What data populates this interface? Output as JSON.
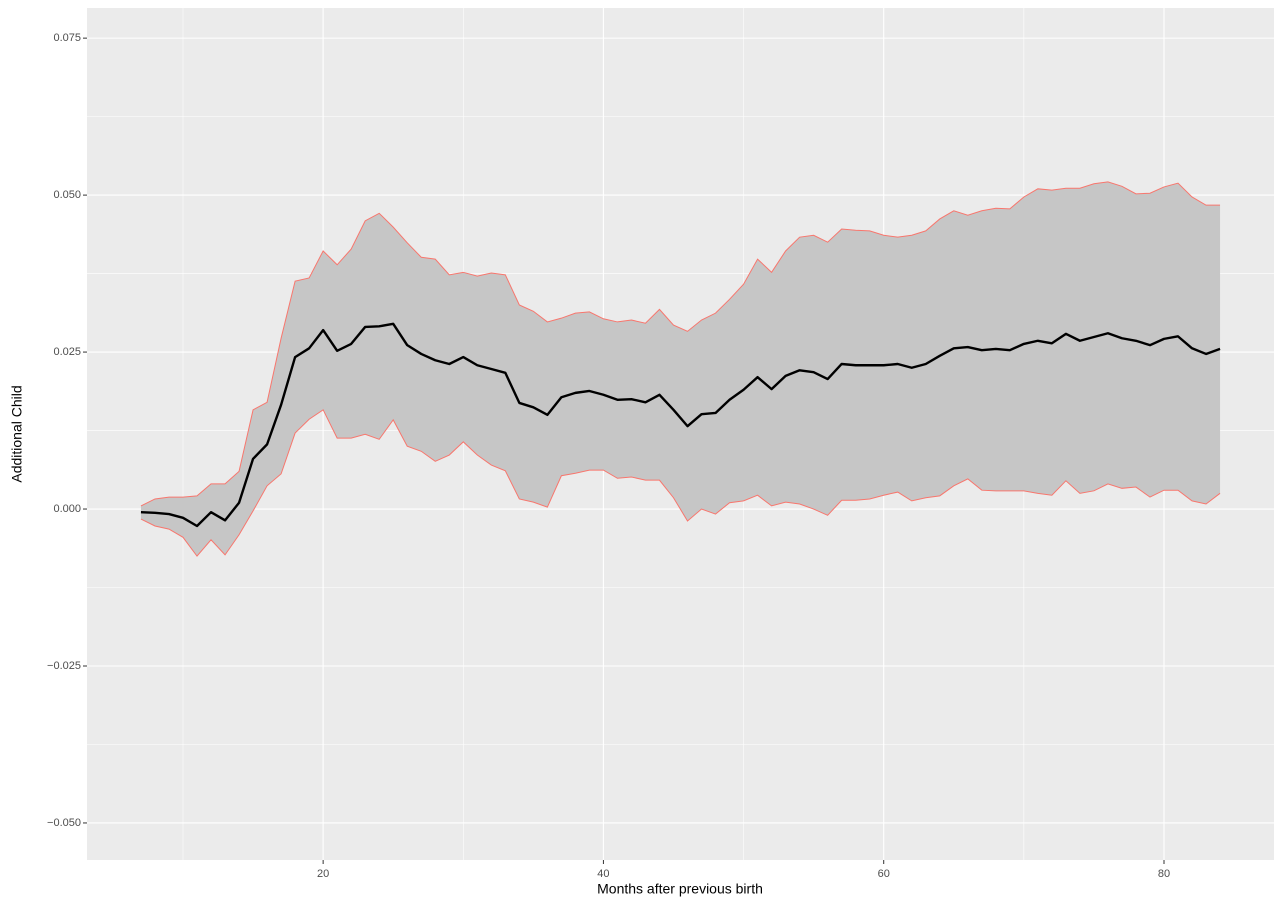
{
  "chart_data": {
    "type": "line",
    "x_label": "Months after previous birth",
    "y_label": "Additional Child",
    "x": [
      7,
      8,
      9,
      10,
      11,
      12,
      13,
      14,
      15,
      16,
      17,
      18,
      19,
      20,
      21,
      22,
      23,
      24,
      25,
      26,
      27,
      28,
      29,
      30,
      31,
      32,
      33,
      34,
      35,
      36,
      37,
      38,
      39,
      40,
      41,
      42,
      43,
      44,
      45,
      46,
      47,
      48,
      49,
      50,
      51,
      52,
      53,
      54,
      55,
      56,
      57,
      58,
      59,
      60,
      61,
      62,
      63,
      64,
      65,
      66,
      67,
      68,
      69,
      70,
      71,
      72,
      73,
      74,
      75,
      76,
      77,
      78,
      79,
      80,
      81,
      82,
      83,
      84
    ],
    "line": {
      "color": "#000000",
      "values": [
        -0.0005,
        -0.0006,
        -0.0008,
        -0.0014,
        -0.0027,
        -0.0005,
        -0.0018,
        0.001,
        0.008,
        0.0103,
        0.0166,
        0.0242,
        0.0256,
        0.0285,
        0.0252,
        0.0263,
        0.029,
        0.0291,
        0.0295,
        0.0261,
        0.0247,
        0.0237,
        0.0231,
        0.0242,
        0.0229,
        0.0223,
        0.0217,
        0.0169,
        0.0162,
        0.015,
        0.0178,
        0.0185,
        0.0188,
        0.0182,
        0.0174,
        0.0175,
        0.017,
        0.0182,
        0.0158,
        0.0132,
        0.0151,
        0.0153,
        0.0174,
        0.019,
        0.021,
        0.0191,
        0.0212,
        0.0221,
        0.0218,
        0.0207,
        0.0231,
        0.0229,
        0.0229,
        0.0229,
        0.0231,
        0.0225,
        0.0231,
        0.0244,
        0.0256,
        0.0258,
        0.0253,
        0.0255,
        0.0253,
        0.0263,
        0.0268,
        0.0264,
        0.0279,
        0.0268,
        0.0274,
        0.028,
        0.0272,
        0.0268,
        0.0261,
        0.0271,
        0.0275,
        0.0256,
        0.0247,
        0.0255
      ]
    },
    "band": {
      "color": "#f8766d",
      "fill": "#c6c6c6",
      "upper": [
        0.0005,
        0.0016,
        0.0019,
        0.0019,
        0.0021,
        0.004,
        0.004,
        0.006,
        0.0158,
        0.017,
        0.0272,
        0.0363,
        0.0368,
        0.0411,
        0.0389,
        0.0414,
        0.0459,
        0.0471,
        0.0449,
        0.0424,
        0.0401,
        0.0398,
        0.0373,
        0.0377,
        0.0371,
        0.0376,
        0.0373,
        0.0325,
        0.0315,
        0.0298,
        0.0304,
        0.0312,
        0.0314,
        0.0303,
        0.0298,
        0.0301,
        0.0296,
        0.0318,
        0.0293,
        0.0283,
        0.0301,
        0.0312,
        0.0334,
        0.0358,
        0.0398,
        0.0377,
        0.0411,
        0.0433,
        0.0436,
        0.0425,
        0.0446,
        0.0444,
        0.0443,
        0.0436,
        0.0433,
        0.0436,
        0.0443,
        0.0462,
        0.0475,
        0.0468,
        0.0475,
        0.0479,
        0.0478,
        0.0497,
        0.051,
        0.0508,
        0.0511,
        0.0511,
        0.0518,
        0.0521,
        0.0514,
        0.0502,
        0.0503,
        0.0513,
        0.0519,
        0.0497,
        0.0484,
        0.0484
      ],
      "lower": [
        -0.0016,
        -0.0027,
        -0.0032,
        -0.0045,
        -0.0075,
        -0.0049,
        -0.0073,
        -0.0041,
        -0.0003,
        0.0037,
        0.0056,
        0.0121,
        0.0143,
        0.0158,
        0.0113,
        0.0113,
        0.0119,
        0.0111,
        0.0142,
        0.01,
        0.0092,
        0.0076,
        0.0086,
        0.0107,
        0.0086,
        0.007,
        0.0061,
        0.0016,
        0.0011,
        0.0003,
        0.0053,
        0.0057,
        0.0062,
        0.0062,
        0.0049,
        0.0051,
        0.0046,
        0.0046,
        0.0018,
        -0.0019,
        0,
        -0.0008,
        0.001,
        0.0013,
        0.0022,
        0.0005,
        0.0011,
        0.0008,
        0,
        -0.001,
        0.0014,
        0.0014,
        0.0016,
        0.0022,
        0.0027,
        0.0013,
        0.0018,
        0.0021,
        0.0037,
        0.0048,
        0.003,
        0.0029,
        0.0029,
        0.0029,
        0.0025,
        0.0022,
        0.0045,
        0.0025,
        0.0029,
        0.004,
        0.0033,
        0.0035,
        0.0019,
        0.003,
        0.003,
        0.0013,
        0.0008,
        0.0025
      ]
    },
    "xlim": [
      3.15,
      87.85
    ],
    "ylim": [
      -0.0559,
      0.0798
    ],
    "xticks": [
      20,
      40,
      60,
      80
    ],
    "yticks": [
      {
        "value": -0.05,
        "label": "−0.050"
      },
      {
        "value": -0.025,
        "label": "−0.025"
      },
      {
        "value": 0,
        "label": "0.000"
      },
      0.025,
      {
        "value": 0.05,
        "label": "0.050"
      },
      0.075
    ],
    "grid": true,
    "minor_grid": true,
    "panel_color": "#ebebeb"
  }
}
